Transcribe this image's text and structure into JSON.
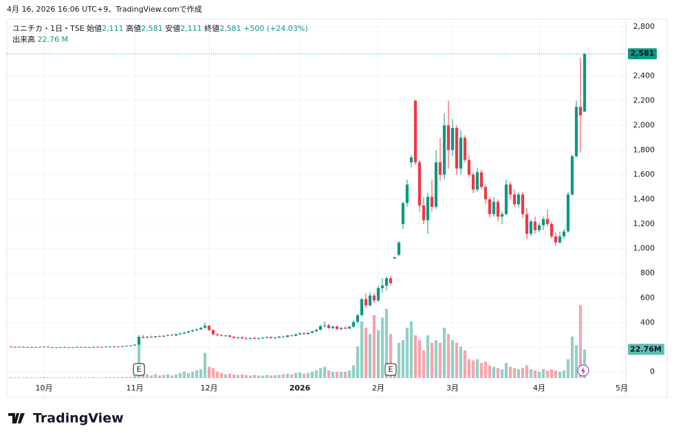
{
  "header": {
    "created": "4月 16, 2026 16:06 UTC+9、TradingView.comで作成"
  },
  "footer": {
    "logo": "TradingView"
  },
  "chart_data": {
    "type": "candlestick",
    "symbol": "ユニチカ・1日・TSE",
    "legend": {
      "open_label": "始値",
      "open": "2,111",
      "high_label": "高値",
      "high": "2,581",
      "low_label": "安値",
      "low": "2,111",
      "close_label": "終値",
      "close": "2,581",
      "change": "+500 (+24.03%)",
      "volume_label": "出来高",
      "volume": "22.76 M"
    },
    "up_color": "#089981",
    "down_color": "#f23645",
    "grid": true,
    "xlim": [
      -1,
      149
    ],
    "xticks": [
      {
        "value": 8,
        "label": "10月"
      },
      {
        "value": 30,
        "label": "11月"
      },
      {
        "value": 48,
        "label": "12月"
      },
      {
        "value": 70,
        "label": "2026"
      },
      {
        "value": 89,
        "label": "2月"
      },
      {
        "value": 107,
        "label": "3月"
      },
      {
        "value": 128,
        "label": "4月"
      },
      {
        "value": 148,
        "label": "5月"
      }
    ],
    "ylim": [
      -206,
      2861
    ],
    "yticks": [
      0,
      200,
      400,
      600,
      800,
      {
        "value": 1000,
        "label": "1,000"
      },
      {
        "value": 1200,
        "label": "1,200"
      },
      {
        "value": 1400,
        "label": "1,400"
      },
      {
        "value": 1600,
        "label": "1,600"
      },
      {
        "value": 1800,
        "label": "1,800"
      },
      {
        "value": 2000,
        "label": "2,000"
      },
      {
        "value": 2200,
        "label": "2,200"
      },
      {
        "value": 2400,
        "label": "2,400"
      },
      {
        "value": 2800,
        "label": "2,800"
      }
    ],
    "volume_lim": [
      0,
      60
    ],
    "last_price": {
      "value": 2581,
      "label": "2,581"
    },
    "last_volume": {
      "value": 22.76,
      "label": "22.76M"
    },
    "events": [
      {
        "x": 31,
        "label": "E"
      },
      {
        "x": 92,
        "label": "E"
      }
    ],
    "open": [
      205,
      203,
      200,
      204,
      201,
      198,
      202,
      200,
      203,
      205,
      200,
      198,
      199,
      202,
      199,
      197,
      200,
      203,
      201,
      199,
      202,
      204,
      201,
      203,
      205,
      206,
      204,
      207,
      210,
      212,
      215,
      222,
      285,
      278,
      285,
      282,
      290,
      286,
      294,
      300,
      296,
      306,
      312,
      320,
      330,
      338,
      345,
      358,
      375,
      340,
      305,
      298,
      292,
      296,
      285,
      276,
      280,
      272,
      270,
      275,
      268,
      274,
      278,
      282,
      274,
      278,
      286,
      284,
      296,
      292,
      305,
      314,
      306,
      318,
      330,
      342,
      372,
      378,
      356,
      368,
      348,
      358,
      352,
      366,
      405,
      460,
      590,
      540,
      620,
      580,
      680,
      700,
      760,
      920,
      950,
      1200,
      1370,
      1700,
      2200,
      1700,
      1350,
      1230,
      1420,
      1340,
      1700,
      1600,
      2000,
      1800,
      1980,
      1650,
      1900,
      1720,
      1600,
      1480,
      1620,
      1500,
      1400,
      1280,
      1380,
      1260,
      1280,
      1520,
      1440,
      1360,
      1440,
      1280,
      1120,
      1220,
      1150,
      1190,
      1240,
      1200,
      1100,
      1050,
      1100,
      1140,
      1440,
      1750,
      2150,
      2111
    ],
    "high": [
      210,
      207,
      206,
      208,
      205,
      203,
      206,
      204,
      208,
      207,
      204,
      202,
      204,
      205,
      203,
      201,
      205,
      206,
      204,
      203,
      206,
      207,
      205,
      207,
      209,
      210,
      208,
      212,
      215,
      218,
      225,
      300,
      300,
      290,
      295,
      292,
      298,
      296,
      305,
      308,
      310,
      318,
      325,
      335,
      345,
      352,
      365,
      400,
      380,
      345,
      312,
      305,
      300,
      302,
      292,
      285,
      290,
      282,
      280,
      285,
      278,
      284,
      290,
      288,
      282,
      290,
      296,
      300,
      305,
      310,
      318,
      322,
      320,
      335,
      348,
      380,
      410,
      392,
      372,
      375,
      362,
      370,
      372,
      420,
      470,
      600,
      640,
      650,
      640,
      700,
      760,
      770,
      780,
      935,
      1060,
      1380,
      1560,
      1760,
      2210,
      1720,
      1420,
      1450,
      1560,
      1800,
      1900,
      2100,
      2200,
      2050,
      2000,
      1960,
      1920,
      1760,
      1620,
      1650,
      1640,
      1520,
      1420,
      1420,
      1400,
      1300,
      1560,
      1540,
      1480,
      1460,
      1460,
      1330,
      1240,
      1260,
      1210,
      1260,
      1320,
      1220,
      1130,
      1140,
      1160,
      1460,
      1760,
      2200,
      2550,
      2581
    ],
    "low": [
      200,
      198,
      197,
      200,
      196,
      195,
      199,
      197,
      200,
      199,
      196,
      194,
      197,
      198,
      195,
      194,
      198,
      199,
      197,
      196,
      200,
      200,
      198,
      200,
      202,
      203,
      200,
      204,
      206,
      209,
      212,
      220,
      270,
      272,
      278,
      276,
      284,
      282,
      290,
      292,
      292,
      300,
      306,
      315,
      322,
      330,
      340,
      352,
      330,
      295,
      290,
      288,
      284,
      280,
      270,
      265,
      268,
      262,
      260,
      266,
      262,
      268,
      272,
      270,
      266,
      274,
      280,
      280,
      288,
      290,
      300,
      302,
      304,
      312,
      324,
      338,
      360,
      350,
      345,
      340,
      338,
      346,
      348,
      360,
      398,
      455,
      520,
      530,
      560,
      570,
      640,
      660,
      700,
      915,
      940,
      1160,
      1340,
      1660,
      1680,
      1300,
      1200,
      1120,
      1300,
      1320,
      1550,
      1560,
      1650,
      1750,
      1600,
      1600,
      1700,
      1580,
      1450,
      1460,
      1480,
      1360,
      1250,
      1260,
      1220,
      1200,
      1270,
      1400,
      1340,
      1330,
      1250,
      1080,
      1100,
      1120,
      1130,
      1150,
      1180,
      1080,
      1020,
      1040,
      1080,
      1130,
      1430,
      1740,
      1780,
      2111
    ],
    "close": [
      203,
      200,
      204,
      201,
      198,
      202,
      200,
      203,
      205,
      200,
      198,
      199,
      202,
      199,
      197,
      200,
      203,
      201,
      199,
      202,
      204,
      201,
      203,
      205,
      206,
      204,
      207,
      210,
      212,
      215,
      222,
      285,
      278,
      285,
      282,
      290,
      286,
      294,
      300,
      296,
      306,
      312,
      320,
      330,
      338,
      345,
      358,
      375,
      340,
      305,
      298,
      292,
      296,
      285,
      276,
      280,
      272,
      270,
      275,
      268,
      274,
      278,
      282,
      274,
      278,
      286,
      284,
      296,
      292,
      305,
      314,
      306,
      318,
      330,
      342,
      372,
      378,
      356,
      368,
      348,
      358,
      352,
      366,
      405,
      460,
      590,
      540,
      620,
      580,
      680,
      700,
      760,
      720,
      930,
      1050,
      1370,
      1520,
      1740,
      1700,
      1350,
      1230,
      1420,
      1340,
      1700,
      1600,
      2000,
      1800,
      1980,
      1650,
      1900,
      1720,
      1600,
      1480,
      1620,
      1500,
      1400,
      1280,
      1380,
      1260,
      1280,
      1520,
      1440,
      1360,
      1440,
      1280,
      1120,
      1220,
      1150,
      1190,
      1240,
      1200,
      1100,
      1050,
      1100,
      1140,
      1440,
      1750,
      2150,
      2081,
      2581
    ],
    "volume": [
      0.6,
      0.5,
      0.5,
      0.4,
      0.6,
      0.5,
      0.4,
      0.5,
      0.6,
      0.5,
      0.4,
      0.5,
      0.5,
      0.4,
      0.5,
      0.4,
      0.6,
      0.5,
      0.4,
      0.5,
      0.6,
      0.5,
      0.4,
      0.5,
      0.6,
      0.5,
      0.6,
      0.7,
      0.8,
      0.9,
      1.5,
      28,
      6,
      3,
      2,
      3,
      2,
      2.5,
      3,
      2,
      3,
      4,
      5,
      4,
      5,
      6,
      7,
      20,
      9,
      8,
      5,
      4,
      3,
      3.5,
      3,
      2.5,
      3,
      2.5,
      2,
      2.5,
      2,
      2,
      2.5,
      2,
      2.2,
      2.5,
      3,
      3.5,
      3,
      4,
      4.5,
      3.5,
      4,
      5,
      6,
      8,
      9,
      6,
      5,
      5,
      5,
      5,
      6,
      10,
      25,
      45,
      40,
      35,
      50,
      38,
      48,
      55,
      35,
      10,
      28,
      30,
      40,
      45,
      34,
      30,
      22,
      34,
      28,
      30,
      28,
      40,
      35,
      30,
      28,
      25,
      22,
      15,
      14,
      15,
      12,
      13,
      10,
      9,
      8,
      7,
      12,
      9,
      8,
      7,
      8,
      10,
      7,
      6,
      5,
      7,
      6,
      7,
      6,
      5,
      6,
      15,
      33,
      26,
      58,
      22.76
    ]
  }
}
